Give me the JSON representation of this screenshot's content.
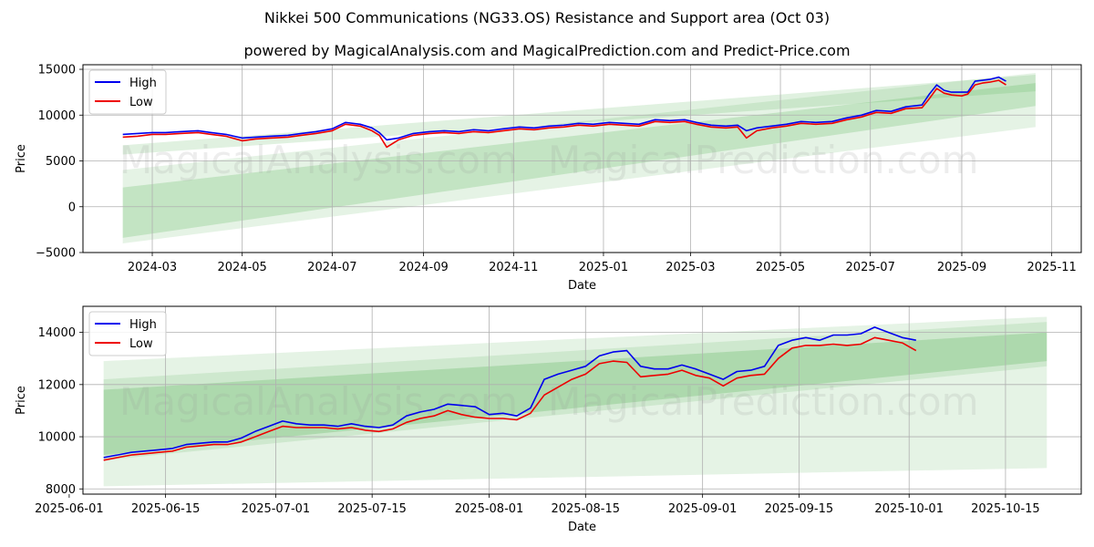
{
  "header": {
    "title": "Nikkei 500 Communications (NG33.OS) Resistance and Support area (Oct 03)",
    "subtitle": "powered by MagicalAnalysis.com and MagicalPrediction.com and Predict-Price.com"
  },
  "watermark": {
    "left": "MagicalAnalysis.com",
    "right": "MagicalPrediction.com"
  },
  "colors": {
    "high": "#0000ee",
    "low": "#ee0000",
    "band": "#2ca02c",
    "grid": "#b0b0b0"
  },
  "chart_data": [
    {
      "type": "line",
      "title": "",
      "xlabel": "Date",
      "ylabel": "Price",
      "xlim": [
        "2024-01-14",
        "2025-11-21"
      ],
      "ylim": [
        -5000,
        15500
      ],
      "xticks": [
        "2024-03-01",
        "2024-05-01",
        "2024-07-01",
        "2024-09-01",
        "2024-11-01",
        "2025-01-01",
        "2025-03-01",
        "2025-05-01",
        "2025-07-01",
        "2025-09-01",
        "2025-11-01"
      ],
      "xtick_labels": [
        "2024-03",
        "2024-05",
        "2024-07",
        "2024-09",
        "2024-11",
        "2025-01",
        "2025-03",
        "2025-05",
        "2025-07",
        "2025-09",
        "2025-11"
      ],
      "yticks": [
        -5000,
        0,
        5000,
        10000,
        15000
      ],
      "ytick_labels": [
        "−5000",
        "0",
        "5000",
        "10000",
        "15000"
      ],
      "legend": {
        "position": "top-left",
        "entries": [
          "High",
          "Low"
        ]
      },
      "bands": [
        {
          "x0": "2024-02-10",
          "x1": "2025-10-21",
          "y0": [
            4000,
            -4000
          ],
          "y1": [
            14600,
            8700
          ],
          "opacity": 0.12
        },
        {
          "x0": "2024-02-10",
          "x1": "2025-10-21",
          "y0": [
            2100,
            -3400
          ],
          "y1": [
            13500,
            11000
          ],
          "opacity": 0.18
        },
        {
          "x0": "2024-02-10",
          "x1": "2025-10-21",
          "y0": [
            6700,
            5700
          ],
          "y1": [
            14400,
            12600
          ],
          "opacity": 0.15
        }
      ],
      "series": [
        {
          "name": "High",
          "color": "#0000ee",
          "x": [
            "2024-02-10",
            "2024-02-20",
            "2024-03-01",
            "2024-03-10",
            "2024-03-20",
            "2024-04-01",
            "2024-04-10",
            "2024-04-20",
            "2024-05-01",
            "2024-05-10",
            "2024-05-20",
            "2024-06-01",
            "2024-06-10",
            "2024-06-20",
            "2024-07-01",
            "2024-07-10",
            "2024-07-20",
            "2024-07-28",
            "2024-08-02",
            "2024-08-07",
            "2024-08-15",
            "2024-08-25",
            "2024-09-05",
            "2024-09-15",
            "2024-09-25",
            "2024-10-05",
            "2024-10-15",
            "2024-10-25",
            "2024-11-05",
            "2024-11-15",
            "2024-11-25",
            "2024-12-05",
            "2024-12-15",
            "2024-12-25",
            "2025-01-05",
            "2025-01-15",
            "2025-01-25",
            "2025-02-05",
            "2025-02-15",
            "2025-02-25",
            "2025-03-05",
            "2025-03-15",
            "2025-03-25",
            "2025-04-02",
            "2025-04-08",
            "2025-04-15",
            "2025-04-25",
            "2025-05-05",
            "2025-05-15",
            "2025-05-25",
            "2025-06-05",
            "2025-06-15",
            "2025-06-25",
            "2025-07-05",
            "2025-07-15",
            "2025-07-25",
            "2025-08-05",
            "2025-08-10",
            "2025-08-15",
            "2025-08-20",
            "2025-08-25",
            "2025-09-01",
            "2025-09-05",
            "2025-09-10",
            "2025-09-15",
            "2025-09-20",
            "2025-09-26",
            "2025-10-01"
          ],
          "values": [
            7900,
            8000,
            8100,
            8100,
            8200,
            8300,
            8100,
            7900,
            7500,
            7600,
            7700,
            7800,
            8000,
            8200,
            8500,
            9200,
            9000,
            8600,
            8100,
            7300,
            7500,
            8000,
            8200,
            8300,
            8200,
            8400,
            8300,
            8500,
            8700,
            8600,
            8800,
            8900,
            9100,
            9000,
            9200,
            9100,
            9000,
            9500,
            9400,
            9500,
            9200,
            8900,
            8800,
            8900,
            8300,
            8600,
            8800,
            9000,
            9300,
            9200,
            9300,
            9700,
            10000,
            10500,
            10400,
            10900,
            11100,
            12300,
            13300,
            12700,
            12500,
            12500,
            12500,
            13700,
            13800,
            13900,
            14150,
            13700
          ]
        },
        {
          "name": "Low",
          "color": "#ee0000",
          "x": [
            "2024-02-10",
            "2024-02-20",
            "2024-03-01",
            "2024-03-10",
            "2024-03-20",
            "2024-04-01",
            "2024-04-10",
            "2024-04-20",
            "2024-05-01",
            "2024-05-10",
            "2024-05-20",
            "2024-06-01",
            "2024-06-10",
            "2024-06-20",
            "2024-07-01",
            "2024-07-10",
            "2024-07-20",
            "2024-07-28",
            "2024-08-02",
            "2024-08-07",
            "2024-08-15",
            "2024-08-25",
            "2024-09-05",
            "2024-09-15",
            "2024-09-25",
            "2024-10-05",
            "2024-10-15",
            "2024-10-25",
            "2024-11-05",
            "2024-11-15",
            "2024-11-25",
            "2024-12-05",
            "2024-12-15",
            "2024-12-25",
            "2025-01-05",
            "2025-01-15",
            "2025-01-25",
            "2025-02-05",
            "2025-02-15",
            "2025-02-25",
            "2025-03-05",
            "2025-03-15",
            "2025-03-25",
            "2025-04-02",
            "2025-04-08",
            "2025-04-15",
            "2025-04-25",
            "2025-05-05",
            "2025-05-15",
            "2025-05-25",
            "2025-06-05",
            "2025-06-15",
            "2025-06-25",
            "2025-07-05",
            "2025-07-15",
            "2025-07-25",
            "2025-08-05",
            "2025-08-10",
            "2025-08-15",
            "2025-08-20",
            "2025-08-25",
            "2025-09-01",
            "2025-09-05",
            "2025-09-10",
            "2025-09-15",
            "2025-09-20",
            "2025-09-26",
            "2025-10-01"
          ],
          "values": [
            7600,
            7700,
            7900,
            7900,
            8000,
            8100,
            7900,
            7700,
            7200,
            7400,
            7500,
            7600,
            7800,
            8000,
            8300,
            9000,
            8800,
            8300,
            7800,
            6500,
            7300,
            7800,
            8000,
            8100,
            8000,
            8200,
            8100,
            8300,
            8500,
            8400,
            8600,
            8700,
            8900,
            8800,
            9000,
            8900,
            8800,
            9300,
            9200,
            9300,
            9000,
            8700,
            8600,
            8700,
            7500,
            8300,
            8600,
            8800,
            9100,
            9000,
            9100,
            9500,
            9800,
            10300,
            10200,
            10700,
            10800,
            11800,
            12900,
            12400,
            12200,
            12100,
            12300,
            13300,
            13500,
            13600,
            13800,
            13300
          ]
        }
      ]
    },
    {
      "type": "line",
      "title": "",
      "xlabel": "Date",
      "ylabel": "Price",
      "xlim": [
        "2025-06-03",
        "2025-10-26"
      ],
      "ylim": [
        7800,
        15000
      ],
      "xticks": [
        "2025-06-01",
        "2025-06-15",
        "2025-07-01",
        "2025-07-15",
        "2025-08-01",
        "2025-08-15",
        "2025-09-01",
        "2025-09-15",
        "2025-10-01",
        "2025-10-15"
      ],
      "xtick_labels": [
        "2025-06-01",
        "2025-06-15",
        "2025-07-01",
        "2025-07-15",
        "2025-08-01",
        "2025-08-15",
        "2025-09-01",
        "2025-09-15",
        "2025-10-01",
        "2025-10-15"
      ],
      "yticks": [
        8000,
        10000,
        12000,
        14000
      ],
      "ytick_labels": [
        "8000",
        "10000",
        "12000",
        "14000"
      ],
      "legend": {
        "position": "top-left",
        "entries": [
          "High",
          "Low"
        ]
      },
      "bands": [
        {
          "x0": "2025-06-06",
          "x1": "2025-10-21",
          "y0": [
            12900,
            8100
          ],
          "y1": [
            14600,
            8800
          ],
          "opacity": 0.12
        },
        {
          "x0": "2025-06-06",
          "x1": "2025-10-21",
          "y0": [
            12200,
            9100
          ],
          "y1": [
            14400,
            12700
          ],
          "opacity": 0.12
        },
        {
          "x0": "2025-06-06",
          "x1": "2025-10-21",
          "y0": [
            11800,
            9300
          ],
          "y1": [
            14000,
            12900
          ],
          "opacity": 0.2
        }
      ],
      "series": [
        {
          "name": "High",
          "color": "#0000ee",
          "x": [
            "2025-06-06",
            "2025-06-08",
            "2025-06-10",
            "2025-06-12",
            "2025-06-14",
            "2025-06-16",
            "2025-06-18",
            "2025-06-20",
            "2025-06-22",
            "2025-06-24",
            "2025-06-26",
            "2025-06-28",
            "2025-06-30",
            "2025-07-02",
            "2025-07-04",
            "2025-07-06",
            "2025-07-08",
            "2025-07-10",
            "2025-07-12",
            "2025-07-14",
            "2025-07-16",
            "2025-07-18",
            "2025-07-20",
            "2025-07-22",
            "2025-07-24",
            "2025-07-26",
            "2025-07-28",
            "2025-07-30",
            "2025-08-01",
            "2025-08-03",
            "2025-08-05",
            "2025-08-07",
            "2025-08-09",
            "2025-08-11",
            "2025-08-13",
            "2025-08-15",
            "2025-08-17",
            "2025-08-19",
            "2025-08-21",
            "2025-08-23",
            "2025-08-25",
            "2025-08-27",
            "2025-08-29",
            "2025-08-31",
            "2025-09-02",
            "2025-09-04",
            "2025-09-06",
            "2025-09-08",
            "2025-09-10",
            "2025-09-12",
            "2025-09-14",
            "2025-09-16",
            "2025-09-18",
            "2025-09-20",
            "2025-09-22",
            "2025-09-24",
            "2025-09-26",
            "2025-09-28",
            "2025-09-30",
            "2025-10-02"
          ],
          "values": [
            9200,
            9300,
            9400,
            9450,
            9500,
            9550,
            9700,
            9750,
            9800,
            9800,
            9950,
            10200,
            10400,
            10600,
            10500,
            10450,
            10450,
            10400,
            10500,
            10400,
            10350,
            10450,
            10800,
            10950,
            11050,
            11250,
            11200,
            11150,
            10850,
            10900,
            10800,
            11100,
            12200,
            12400,
            12550,
            12700,
            13100,
            13250,
            13300,
            12700,
            12600,
            12600,
            12750,
            12600,
            12400,
            12200,
            12500,
            12550,
            12700,
            13500,
            13700,
            13800,
            13700,
            13900,
            13900,
            13950,
            14200,
            14000,
            13800,
            13700
          ]
        },
        {
          "name": "Low",
          "color": "#ee0000",
          "x": [
            "2025-06-06",
            "2025-06-08",
            "2025-06-10",
            "2025-06-12",
            "2025-06-14",
            "2025-06-16",
            "2025-06-18",
            "2025-06-20",
            "2025-06-22",
            "2025-06-24",
            "2025-06-26",
            "2025-06-28",
            "2025-06-30",
            "2025-07-02",
            "2025-07-04",
            "2025-07-06",
            "2025-07-08",
            "2025-07-10",
            "2025-07-12",
            "2025-07-14",
            "2025-07-16",
            "2025-07-18",
            "2025-07-20",
            "2025-07-22",
            "2025-07-24",
            "2025-07-26",
            "2025-07-28",
            "2025-07-30",
            "2025-08-01",
            "2025-08-03",
            "2025-08-05",
            "2025-08-07",
            "2025-08-09",
            "2025-08-11",
            "2025-08-13",
            "2025-08-15",
            "2025-08-17",
            "2025-08-19",
            "2025-08-21",
            "2025-08-23",
            "2025-08-25",
            "2025-08-27",
            "2025-08-29",
            "2025-08-31",
            "2025-09-02",
            "2025-09-04",
            "2025-09-06",
            "2025-09-08",
            "2025-09-10",
            "2025-09-12",
            "2025-09-14",
            "2025-09-16",
            "2025-09-18",
            "2025-09-20",
            "2025-09-22",
            "2025-09-24",
            "2025-09-26",
            "2025-09-28",
            "2025-09-30",
            "2025-10-02"
          ],
          "values": [
            9100,
            9200,
            9300,
            9350,
            9400,
            9450,
            9600,
            9650,
            9700,
            9700,
            9800,
            10000,
            10200,
            10400,
            10350,
            10350,
            10350,
            10300,
            10350,
            10250,
            10200,
            10300,
            10550,
            10700,
            10800,
            11000,
            10850,
            10750,
            10700,
            10700,
            10650,
            10900,
            11600,
            11900,
            12200,
            12400,
            12800,
            12900,
            12850,
            12300,
            12350,
            12400,
            12550,
            12350,
            12250,
            11950,
            12250,
            12350,
            12400,
            13000,
            13400,
            13500,
            13500,
            13550,
            13500,
            13550,
            13800,
            13700,
            13600,
            13300
          ]
        }
      ]
    }
  ]
}
